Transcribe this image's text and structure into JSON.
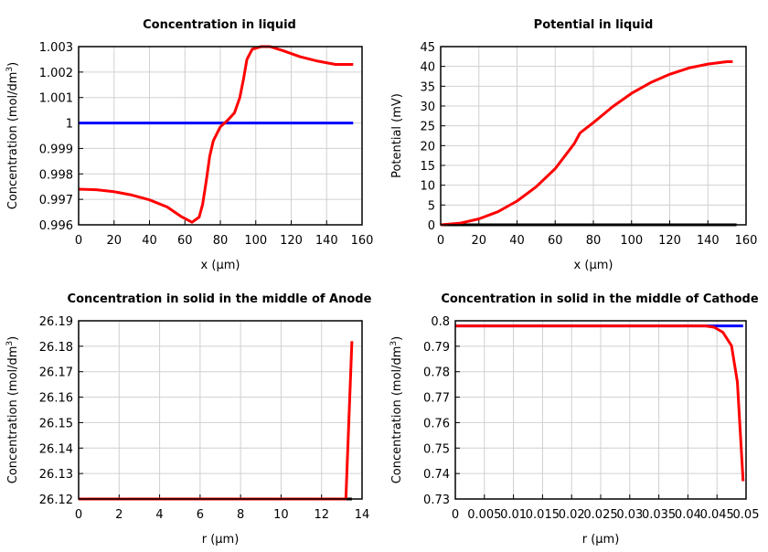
{
  "chart_data": [
    {
      "type": "line",
      "title": "Concentration in liquid",
      "xlabel": "x (µm)",
      "ylabel": "Concentration (mol/dm",
      "ylabel_sup": "3",
      "ylabel_end": ")",
      "xlim": [
        0,
        160
      ],
      "ylim": [
        0.996,
        1.003
      ],
      "grid": true,
      "xticks": [
        0,
        20,
        40,
        60,
        80,
        100,
        120,
        140,
        160
      ],
      "xtick_labels": [
        "0",
        "20",
        "40",
        "60",
        "80",
        "100",
        "120",
        "140",
        "160"
      ],
      "yticks": [
        0.996,
        0.997,
        0.998,
        0.999,
        1,
        1.001,
        1.002,
        1.003
      ],
      "ytick_labels": [
        "0.996",
        "0.997",
        "0.998",
        "0.999",
        "1",
        "1.001",
        "1.002",
        "1.003"
      ],
      "series": [
        {
          "color": "#0000ff",
          "x": [
            0,
            155
          ],
          "y": [
            1,
            1
          ]
        },
        {
          "color": "#ff0000",
          "x": [
            0,
            10,
            20,
            30,
            40,
            50,
            58,
            64,
            68,
            70,
            72,
            74,
            76,
            80,
            84,
            88,
            91,
            93,
            95,
            98,
            103,
            108,
            115,
            125,
            135,
            145,
            155
          ],
          "y": [
            0.9974,
            0.99738,
            0.9973,
            0.99717,
            0.99698,
            0.9967,
            0.99632,
            0.9961,
            0.9963,
            0.9968,
            0.9977,
            0.9987,
            0.9993,
            0.99985,
            1.0001,
            1.0004,
            1.001,
            1.0017,
            1.0025,
            1.0029,
            1.003,
            1.003,
            1.00285,
            1.0026,
            1.00243,
            1.0023,
            1.0023
          ]
        }
      ]
    },
    {
      "type": "line",
      "title": "Potential in liquid",
      "xlabel": "x (µm)",
      "ylabel": "Potential (mV)",
      "xlim": [
        0,
        160
      ],
      "ylim": [
        0,
        45
      ],
      "grid": true,
      "xticks": [
        0,
        20,
        40,
        60,
        80,
        100,
        120,
        140,
        160
      ],
      "xtick_labels": [
        "0",
        "20",
        "40",
        "60",
        "80",
        "100",
        "120",
        "140",
        "160"
      ],
      "yticks": [
        0,
        5,
        10,
        15,
        20,
        25,
        30,
        35,
        40,
        45
      ],
      "ytick_labels": [
        "0",
        "5",
        "10",
        "15",
        "20",
        "25",
        "30",
        "35",
        "40",
        "45"
      ],
      "series": [
        {
          "color": "#000000",
          "x": [
            0,
            155
          ],
          "y": [
            0,
            0
          ]
        },
        {
          "color": "#ff0000",
          "x": [
            0,
            10,
            20,
            30,
            40,
            50,
            60,
            70,
            73,
            80,
            90,
            100,
            110,
            120,
            130,
            140,
            150,
            153
          ],
          "y": [
            0,
            0.4,
            1.5,
            3.3,
            6,
            9.6,
            14.2,
            20.5,
            23.2,
            25.8,
            29.8,
            33.2,
            35.9,
            38,
            39.6,
            40.6,
            41.2,
            41.2
          ]
        }
      ]
    },
    {
      "type": "line",
      "title": "Concentration in solid in the middle of Anode",
      "xlabel": "r (µm)",
      "ylabel": "Concentration (mol/dm",
      "ylabel_sup": "3",
      "ylabel_end": ")",
      "xlim": [
        0,
        14
      ],
      "ylim": [
        26.12,
        26.19
      ],
      "grid": true,
      "xticks": [
        0,
        2,
        4,
        6,
        8,
        10,
        12,
        14
      ],
      "xtick_labels": [
        "0",
        "2",
        "4",
        "6",
        "8",
        "10",
        "12",
        "14"
      ],
      "yticks": [
        26.12,
        26.13,
        26.14,
        26.15,
        26.16,
        26.17,
        26.18,
        26.19
      ],
      "ytick_labels": [
        "26.12",
        "26.13",
        "26.14",
        "26.15",
        "26.16",
        "26.17",
        "26.18",
        "26.19"
      ],
      "series": [
        {
          "color": "#000000",
          "x": [
            0,
            13.5
          ],
          "y": [
            26.12,
            26.12
          ]
        },
        {
          "color": "#ff0000",
          "x": [
            0,
            13.2,
            13.5
          ],
          "y": [
            26.12,
            26.12,
            26.182
          ]
        }
      ]
    },
    {
      "type": "line",
      "title": "Concentration in solid in the middle of Cathode",
      "xlabel": "r (µm)",
      "ylabel": "Concentration (mol/dm",
      "ylabel_sup": "3",
      "ylabel_end": ")",
      "xlim": [
        0,
        0.05
      ],
      "ylim": [
        0.73,
        0.8
      ],
      "grid": true,
      "xticks": [
        0,
        0.005,
        0.01,
        0.015,
        0.02,
        0.025,
        0.03,
        0.035,
        0.04,
        0.045,
        0.05
      ],
      "xtick_labels": [
        "0",
        "0.005",
        "0.01",
        "0.015",
        "0.02",
        "0.025",
        "0.03",
        "0.035",
        "0.04",
        "0.045",
        "0.05"
      ],
      "yticks": [
        0.73,
        0.74,
        0.75,
        0.76,
        0.77,
        0.78,
        0.79,
        0.8
      ],
      "ytick_labels": [
        "0.73",
        "0.74",
        "0.75",
        "0.76",
        "0.77",
        "0.78",
        "0.79",
        "0.8"
      ],
      "series": [
        {
          "color": "#0000ff",
          "x": [
            0,
            0.0495
          ],
          "y": [
            0.798,
            0.798
          ]
        },
        {
          "color": "#ff0000",
          "x": [
            0,
            0.043,
            0.0445,
            0.046,
            0.0475,
            0.0485,
            0.0495
          ],
          "y": [
            0.798,
            0.798,
            0.7975,
            0.7955,
            0.7902,
            0.776,
            0.737
          ]
        }
      ]
    }
  ]
}
